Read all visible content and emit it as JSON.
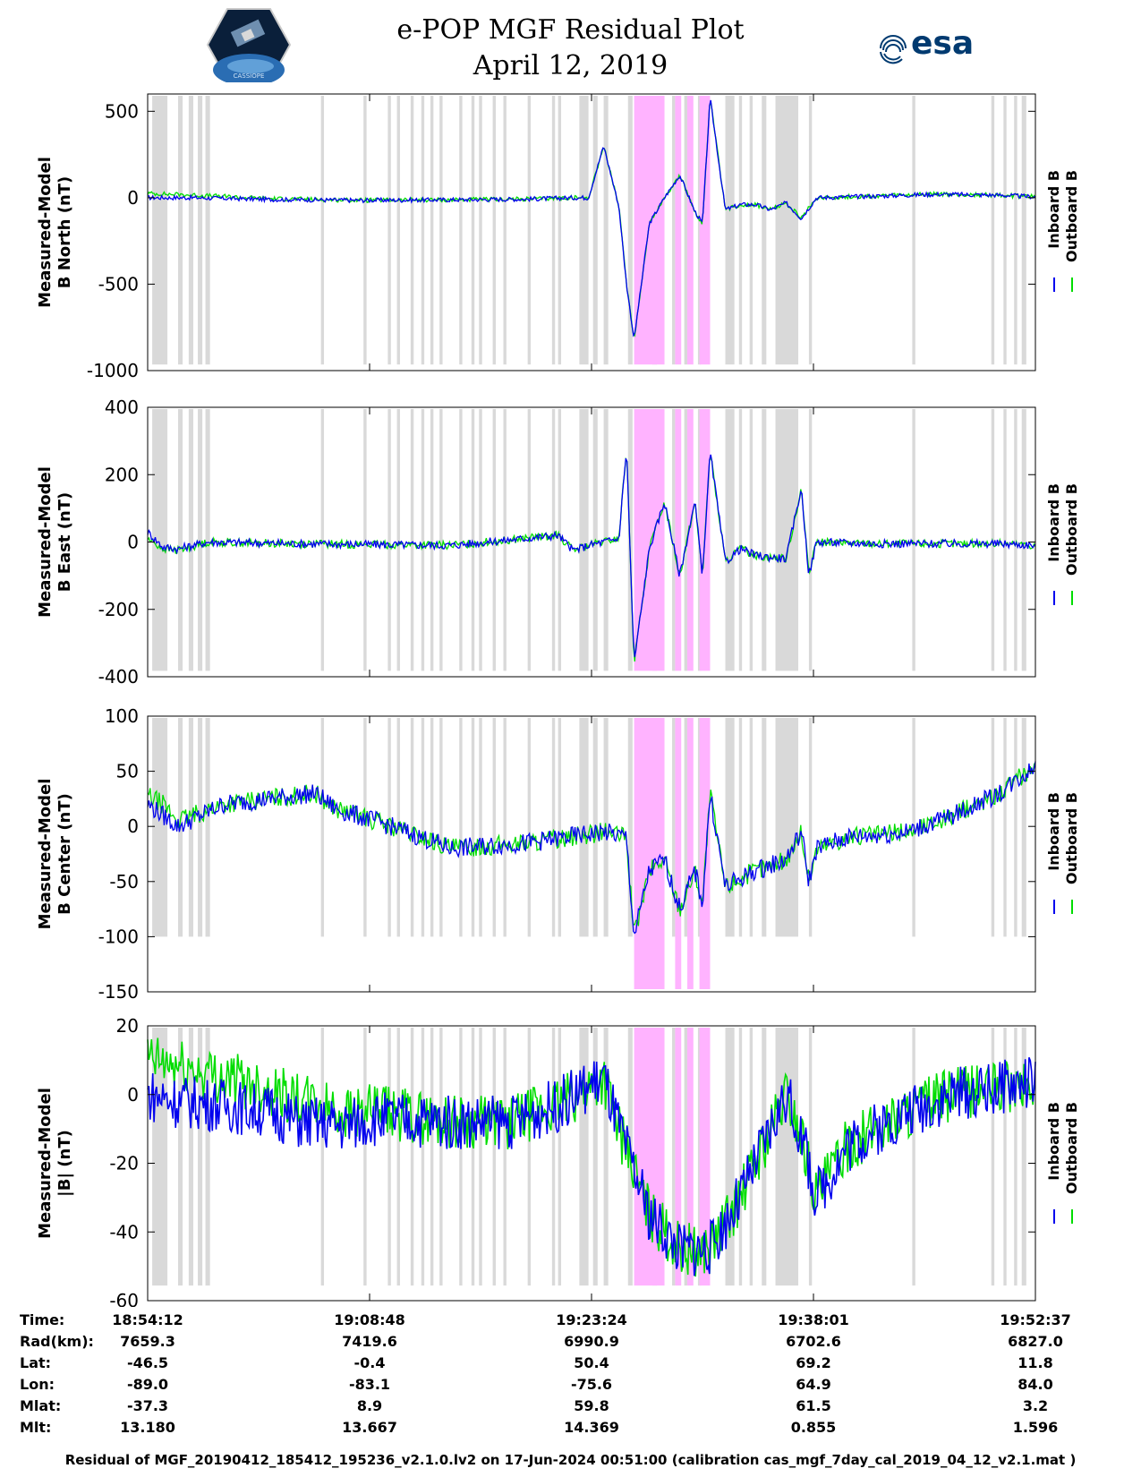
{
  "header": {
    "title": "e-POP MGF Residual Plot",
    "date": "April 12, 2019",
    "left_logo": "cassiope-mission-logo",
    "left_logo_text": "CASSIOPE",
    "right_logo": "esa-logo",
    "right_logo_text": "esa"
  },
  "colors": {
    "inboard": "#0000ee",
    "outboard": "#00dd00",
    "gray_band": "#d9d9d9",
    "pink_band": "#ffb3ff",
    "esa_blue": "#003a70"
  },
  "chart_data": [
    {
      "type": "line",
      "panel": "b-north",
      "ylabel_line1": "Measured-Model",
      "ylabel_line2": "B North (nT)",
      "ylim": [
        -1000,
        600
      ],
      "yticks": [
        500,
        0,
        -500,
        -1000
      ],
      "ytick_labels": [
        "500",
        "0",
        "-500",
        "-1000"
      ],
      "legend": [
        "Inboard B",
        "Outboard B"
      ],
      "x_minutes": [
        0,
        3,
        8,
        14,
        20,
        25,
        28,
        29,
        30,
        31,
        31.5,
        32,
        33,
        34,
        35,
        36,
        36.5,
        37,
        38,
        39,
        40,
        41,
        42,
        43,
        44,
        48,
        52,
        56,
        58.4
      ],
      "series": [
        {
          "name": "Inboard B",
          "values": [
            0,
            0,
            -10,
            -15,
            -12,
            -8,
            0,
            0,
            300,
            -50,
            -500,
            -820,
            -150,
            0,
            130,
            -80,
            -150,
            580,
            -70,
            -40,
            -40,
            -70,
            -30,
            -120,
            0,
            10,
            20,
            15,
            5
          ]
        },
        {
          "name": "Outboard B",
          "values": [
            25,
            15,
            -5,
            -15,
            -12,
            -8,
            0,
            0,
            300,
            -50,
            -500,
            -820,
            -150,
            0,
            130,
            -80,
            -150,
            580,
            -70,
            -40,
            -40,
            -70,
            -30,
            -120,
            0,
            10,
            20,
            15,
            5
          ]
        }
      ]
    },
    {
      "type": "line",
      "panel": "b-east",
      "ylabel_line1": "Measured-Model",
      "ylabel_line2": "B East (nT)",
      "ylim": [
        -400,
        400
      ],
      "yticks": [
        400,
        200,
        0,
        -200,
        -400
      ],
      "ytick_labels": [
        "400",
        "200",
        "0",
        "-200",
        "-400"
      ],
      "legend": [
        "Inboard B",
        "Outboard B"
      ],
      "x_minutes": [
        0,
        1,
        2,
        4,
        10,
        20,
        27,
        28,
        29,
        31,
        31.5,
        32,
        33,
        34,
        35,
        36,
        36.5,
        37,
        38,
        39,
        40,
        42,
        43,
        43.5,
        44,
        48,
        56,
        58.4
      ],
      "series": [
        {
          "name": "Inboard B",
          "values": [
            30,
            -15,
            -20,
            0,
            -5,
            -10,
            20,
            -25,
            -10,
            10,
            280,
            -360,
            -20,
            120,
            -100,
            120,
            -100,
            270,
            -60,
            -20,
            -40,
            -50,
            160,
            -100,
            0,
            -5,
            -5,
            -10
          ]
        },
        {
          "name": "Outboard B",
          "values": [
            10,
            -20,
            -25,
            0,
            -5,
            -10,
            20,
            -25,
            -10,
            10,
            280,
            -360,
            -20,
            120,
            -100,
            120,
            -100,
            270,
            -60,
            -20,
            -40,
            -50,
            160,
            -100,
            0,
            -5,
            -5,
            -10
          ]
        }
      ]
    },
    {
      "type": "line",
      "panel": "b-center",
      "ylabel_line1": "Measured-Model",
      "ylabel_line2": "B Center (nT)",
      "ylim": [
        -150,
        100
      ],
      "yticks": [
        100,
        50,
        0,
        -50,
        -100,
        -150
      ],
      "ytick_labels": [
        "100",
        "50",
        "0",
        "-50",
        "-100",
        "-150"
      ],
      "legend": [
        "Inboard B",
        "Outboard B"
      ],
      "x_minutes": [
        0,
        1,
        2,
        5,
        8,
        11,
        12.5,
        15,
        20,
        25,
        30,
        31.5,
        32,
        33,
        34,
        35,
        36,
        36.5,
        37,
        38,
        40,
        42,
        43,
        43.5,
        44,
        46,
        50,
        53,
        56,
        58.4
      ],
      "series": [
        {
          "name": "Inboard B",
          "values": [
            20,
            10,
            0,
            20,
            25,
            30,
            15,
            5,
            -20,
            -15,
            -5,
            -10,
            -100,
            -40,
            -30,
            -75,
            -40,
            -70,
            30,
            -55,
            -40,
            -30,
            -5,
            -50,
            -20,
            -10,
            -5,
            10,
            30,
            55
          ]
        },
        {
          "name": "Outboard B",
          "values": [
            28,
            20,
            5,
            20,
            25,
            30,
            15,
            5,
            -20,
            -15,
            -5,
            -10,
            -100,
            -40,
            -30,
            -75,
            -40,
            -70,
            30,
            -55,
            -40,
            -30,
            -5,
            -50,
            -20,
            -10,
            -5,
            10,
            30,
            55
          ]
        }
      ]
    },
    {
      "type": "line",
      "panel": "b-magnitude",
      "ylabel_line1": "Measured-Model",
      "ylabel_line2": "|B| (nT)",
      "ylim": [
        -60,
        20
      ],
      "yticks": [
        20,
        0,
        -20,
        -40,
        -60
      ],
      "ytick_labels": [
        "20",
        "0",
        "-20",
        "-40",
        "-60"
      ],
      "legend": [
        "Inboard B",
        "Outboard B"
      ],
      "x_minutes": [
        0,
        2,
        5,
        8,
        10,
        13,
        15,
        20,
        24,
        27,
        30,
        31,
        33,
        35,
        37,
        39,
        41,
        42,
        43,
        44,
        46,
        48,
        50,
        53,
        56,
        58.4
      ],
      "series": [
        {
          "name": "Inboard B",
          "values": [
            0,
            -2,
            -3,
            -5,
            -8,
            -9,
            -7,
            -8,
            -8,
            -3,
            5,
            -10,
            -35,
            -45,
            -45,
            -30,
            -10,
            0,
            -12,
            -30,
            -15,
            -10,
            -5,
            0,
            2,
            4
          ]
        },
        {
          "name": "Outboard B",
          "values": [
            10,
            8,
            5,
            2,
            -2,
            -5,
            -5,
            -8,
            -8,
            -3,
            5,
            -10,
            -35,
            -45,
            -45,
            -30,
            -10,
            0,
            -12,
            -30,
            -15,
            -10,
            -5,
            0,
            2,
            2
          ]
        }
      ]
    }
  ],
  "shading": {
    "gray_bands_minutes": [
      [
        0.3,
        1.3
      ],
      [
        2.0,
        2.3
      ],
      [
        2.7,
        3.0
      ],
      [
        3.3,
        3.6
      ],
      [
        3.8,
        4.1
      ],
      [
        11.4,
        11.6
      ],
      [
        14.2,
        14.4
      ],
      [
        15.8,
        16.0
      ],
      [
        16.4,
        16.6
      ],
      [
        17.3,
        17.5
      ],
      [
        18.0,
        18.2
      ],
      [
        18.6,
        18.8
      ],
      [
        19.2,
        19.4
      ],
      [
        20.5,
        20.7
      ],
      [
        21.3,
        21.5
      ],
      [
        21.8,
        22.0
      ],
      [
        22.7,
        22.9
      ],
      [
        23.4,
        23.6
      ],
      [
        25.0,
        25.2
      ],
      [
        26.6,
        26.8
      ],
      [
        27.0,
        27.2
      ],
      [
        28.4,
        29.0
      ],
      [
        29.3,
        29.6
      ],
      [
        30.0,
        30.3
      ],
      [
        31.6,
        31.9
      ],
      [
        33.2,
        33.5
      ],
      [
        34.5,
        34.7
      ],
      [
        35.3,
        35.5
      ],
      [
        36.2,
        36.4
      ],
      [
        38.0,
        38.6
      ],
      [
        38.9,
        39.1
      ],
      [
        39.6,
        39.8
      ],
      [
        40.4,
        40.7
      ],
      [
        41.3,
        42.8
      ],
      [
        43.5,
        43.7
      ],
      [
        50.3,
        50.5
      ],
      [
        55.5,
        55.7
      ],
      [
        56.3,
        56.5
      ],
      [
        57.0,
        57.2
      ],
      [
        57.5,
        57.8
      ]
    ],
    "pink_bands_minutes": [
      [
        32.0,
        34.0
      ],
      [
        34.7,
        35.1
      ],
      [
        35.5,
        35.9
      ],
      [
        36.3,
        37.0
      ]
    ]
  },
  "x_axis": {
    "tick_minutes": [
      0,
      14.6,
      29.2,
      43.8,
      58.4
    ]
  },
  "info_table": {
    "labels": [
      "Time:",
      "Rad(km):",
      "Lat:",
      "Lon:",
      "Mlat:",
      "Mlt:"
    ],
    "rows": [
      [
        "18:54:12",
        "19:08:48",
        "19:23:24",
        "19:38:01",
        "19:52:37"
      ],
      [
        "7659.3",
        "7419.6",
        "6990.9",
        "6702.6",
        "6827.0"
      ],
      [
        "-46.5",
        "-0.4",
        "50.4",
        "69.2",
        "11.8"
      ],
      [
        "-89.0",
        "-83.1",
        "-75.6",
        "64.9",
        "84.0"
      ],
      [
        "-37.3",
        "8.9",
        "59.8",
        "61.5",
        "3.2"
      ],
      [
        "13.180",
        "13.667",
        "14.369",
        "0.855",
        "1.596"
      ]
    ]
  },
  "footer": "Residual of MGF_20190412_185412_195236_v2.1.0.lv2 on 17-Jun-2024 00:51:00 (calibration cas_mgf_7day_cal_2019_04_12_v2.1.mat )"
}
